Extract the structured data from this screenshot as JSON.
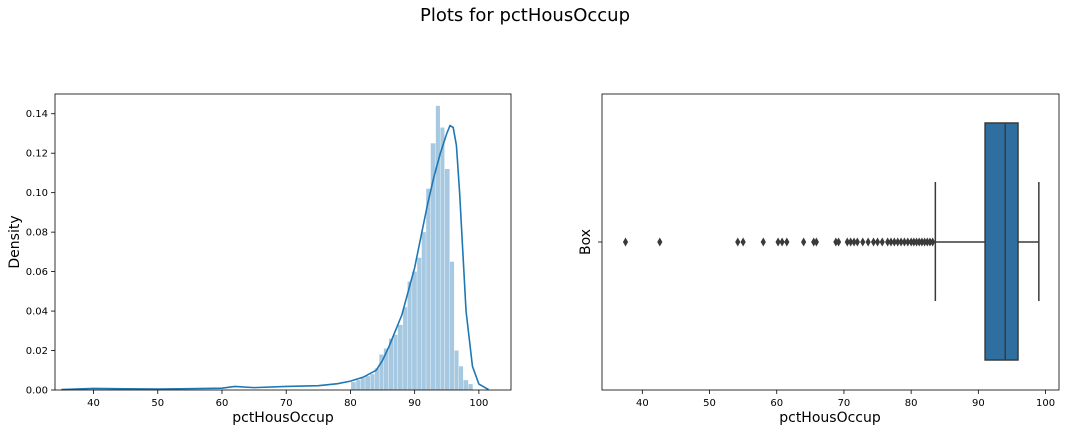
{
  "suptitle": "Plots for pctHousOccup",
  "colors": {
    "hist_fill": "#a6c8e0",
    "kde_line": "#1f77b4",
    "box_fill": "#2f6f9f",
    "box_line": "#3a3a3a"
  },
  "chart_data": [
    {
      "type": "histogram",
      "xlabel": "pctHousOccup",
      "ylabel": "Density",
      "xlim": [
        34,
        105
      ],
      "ylim": [
        0,
        0.15
      ],
      "xticks": [
        "40",
        "50",
        "60",
        "70",
        "80",
        "90",
        "100"
      ],
      "yticks": [
        "0.00",
        "0.02",
        "0.04",
        "0.06",
        "0.08",
        "0.10",
        "0.12",
        "0.14"
      ],
      "bin_edges": [
        80.1,
        80.9,
        81.6,
        82.3,
        83.1,
        83.8,
        84.5,
        85.2,
        86.0,
        86.7,
        87.4,
        88.2,
        88.9,
        89.6,
        90.4,
        91.1,
        91.8,
        92.5,
        93.3,
        94.0,
        94.7,
        95.5,
        96.2,
        96.9,
        97.6,
        98.4,
        99.1
      ],
      "bin_densities": [
        0.004,
        0.005,
        0.006,
        0.007,
        0.008,
        0.011,
        0.018,
        0.021,
        0.026,
        0.028,
        0.033,
        0.042,
        0.055,
        0.06,
        0.067,
        0.08,
        0.102,
        0.125,
        0.144,
        0.133,
        0.112,
        0.065,
        0.02,
        0.012,
        0.005,
        0.003
      ],
      "low_bins_note": "",
      "kde": {
        "x": [
          35,
          40,
          45,
          50,
          55,
          60,
          62,
          65,
          70,
          75,
          78,
          80,
          82,
          84,
          85,
          86,
          87,
          88,
          89,
          90,
          91,
          92,
          93,
          94,
          95,
          95.5,
          96,
          96.5,
          97,
          97.5,
          98,
          99,
          100,
          101.5
        ],
        "y": [
          0.0002,
          0.0008,
          0.0006,
          0.0005,
          0.0007,
          0.0009,
          0.0018,
          0.0012,
          0.0018,
          0.0022,
          0.0032,
          0.0045,
          0.0065,
          0.01,
          0.015,
          0.022,
          0.03,
          0.038,
          0.05,
          0.062,
          0.078,
          0.094,
          0.108,
          0.12,
          0.13,
          0.134,
          0.133,
          0.124,
          0.1,
          0.07,
          0.04,
          0.012,
          0.003,
          0.0002
        ]
      }
    },
    {
      "type": "box",
      "xlabel": "pctHousOccup",
      "ylabel": "Box",
      "xlim": [
        34,
        102
      ],
      "xticks": [
        "40",
        "50",
        "60",
        "70",
        "80",
        "90",
        "100"
      ],
      "whisker_low": 83.6,
      "q1": 91.0,
      "median": 94.0,
      "q3": 95.9,
      "whisker_high": 99.0,
      "outliers": [
        37.5,
        42.6,
        54.2,
        55.0,
        58.0,
        60.2,
        60.8,
        61.5,
        64.0,
        65.5,
        65.9,
        68.8,
        69.2,
        70.5,
        71.0,
        71.5,
        72.0,
        72.8,
        73.6,
        74.4,
        75.0,
        75.7,
        76.5,
        77.0,
        77.5,
        78.0,
        78.5,
        79.0,
        79.5,
        80.0,
        80.4,
        80.8,
        81.2,
        81.6,
        82.0,
        82.4,
        82.8,
        83.2
      ]
    }
  ]
}
